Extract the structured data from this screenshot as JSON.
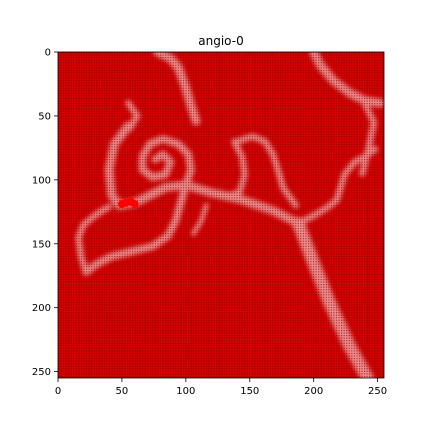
{
  "chart_data": {
    "type": "heatmap",
    "title": "angio-0",
    "xlabel": "",
    "ylabel": "",
    "xlim": [
      0,
      255
    ],
    "ylim": [
      255,
      0
    ],
    "xticks": [
      0,
      50,
      100,
      150,
      200,
      250
    ],
    "yticks": [
      0,
      50,
      100,
      150,
      200,
      250
    ],
    "grid": false,
    "colors": {
      "background": "#d40000",
      "vessel": "#f08a8a",
      "dot_grid": "#6a0000",
      "marker": "#ff0000"
    },
    "vessels": [
      {
        "path": [
          [
            78,
            0
          ],
          [
            88,
            5
          ],
          [
            94,
            12
          ],
          [
            100,
            28
          ],
          [
            104,
            42
          ],
          [
            108,
            54
          ]
        ],
        "width": 7
      },
      {
        "path": [
          [
            200,
            0
          ],
          [
            205,
            10
          ],
          [
            215,
            22
          ],
          [
            228,
            32
          ],
          [
            240,
            38
          ],
          [
            252,
            40
          ]
        ],
        "width": 7
      },
      {
        "path": [
          [
            240,
            40
          ],
          [
            247,
            55
          ],
          [
            243,
            75
          ],
          [
            238,
            95
          ]
        ],
        "width": 5
      },
      {
        "path": [
          [
            55,
            58
          ],
          [
            44,
            72
          ],
          [
            40,
            92
          ],
          [
            42,
            112
          ],
          [
            48,
            120
          ]
        ],
        "width": 7
      },
      {
        "path": [
          [
            56,
            60
          ],
          [
            62,
            50
          ],
          [
            55,
            40
          ]
        ],
        "width": 5
      },
      {
        "path": [
          [
            48,
            120
          ],
          [
            60,
            118
          ],
          [
            72,
            112
          ],
          [
            84,
            106
          ],
          [
            100,
            104
          ],
          [
            120,
            110
          ],
          [
            142,
            115
          ],
          [
            168,
            124
          ],
          [
            188,
            134
          ]
        ],
        "width": 7
      },
      {
        "path": [
          [
            188,
            134
          ],
          [
            200,
            128
          ],
          [
            210,
            122
          ],
          [
            218,
            116
          ]
        ],
        "width": 5
      },
      {
        "path": [
          [
            218,
            116
          ],
          [
            224,
            96
          ],
          [
            232,
            86
          ],
          [
            240,
            82
          ],
          [
            248,
            76
          ]
        ],
        "width": 5
      },
      {
        "path": [
          [
            188,
            134
          ],
          [
            198,
            160
          ],
          [
            212,
            195
          ],
          [
            228,
            230
          ],
          [
            242,
            255
          ]
        ],
        "width": 10
      },
      {
        "path": [
          [
            100,
            104
          ],
          [
            104,
            92
          ],
          [
            102,
            80
          ],
          [
            94,
            72
          ],
          [
            82,
            68
          ],
          [
            72,
            72
          ],
          [
            66,
            82
          ],
          [
            66,
            92
          ],
          [
            74,
            98
          ],
          [
            84,
            96
          ],
          [
            88,
            86
          ],
          [
            82,
            80
          ],
          [
            76,
            84
          ]
        ],
        "width": 6
      },
      {
        "path": [
          [
            100,
            104
          ],
          [
            96,
            118
          ],
          [
            92,
            132
          ],
          [
            86,
            144
          ],
          [
            74,
            152
          ],
          [
            58,
            156
          ],
          [
            42,
            160
          ],
          [
            30,
            166
          ],
          [
            22,
            172
          ]
        ],
        "width": 6
      },
      {
        "path": [
          [
            22,
            172
          ],
          [
            18,
            160
          ],
          [
            16,
            145
          ],
          [
            20,
            135
          ],
          [
            30,
            127
          ],
          [
            40,
            121
          ]
        ],
        "width": 5
      },
      {
        "path": [
          [
            138,
            70
          ],
          [
            144,
            82
          ],
          [
            146,
            96
          ],
          [
            142,
            110
          ],
          [
            134,
            112
          ]
        ],
        "width": 5
      },
      {
        "path": [
          [
            140,
            70
          ],
          [
            152,
            66
          ],
          [
            162,
            70
          ],
          [
            168,
            80
          ],
          [
            172,
            92
          ],
          [
            176,
            106
          ],
          [
            186,
            120
          ]
        ],
        "width": 5
      },
      {
        "path": [
          [
            116,
            120
          ],
          [
            112,
            132
          ],
          [
            106,
            142
          ]
        ],
        "width": 4
      }
    ],
    "markers": [
      {
        "x": 57,
        "y": 117
      },
      {
        "x": 53,
        "y": 118
      },
      {
        "x": 60,
        "y": 119
      },
      {
        "x": 50,
        "y": 119
      }
    ]
  }
}
